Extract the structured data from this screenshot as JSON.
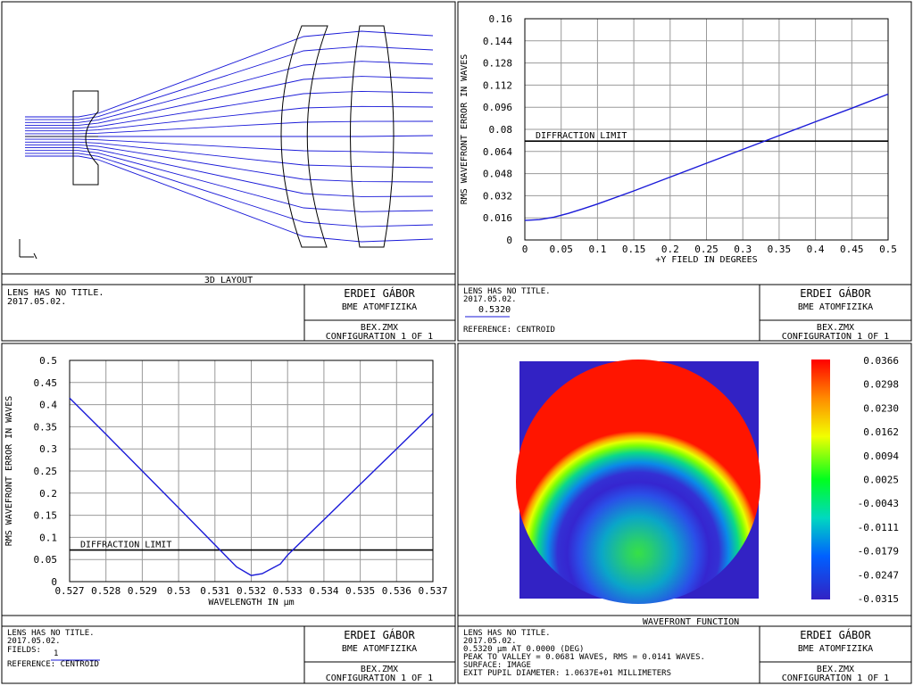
{
  "colors": {
    "frame": "#000000",
    "grid": "#9a9a9a",
    "ray": "#1a1ad8",
    "curve": "#1a1ad8",
    "lens": "#000000",
    "map_bg": "#3222c4"
  },
  "panels": [
    {
      "id": "layout",
      "title": "3D LAYOUT",
      "info_lines": [
        "LENS HAS NO TITLE.",
        "2017.05.02."
      ],
      "author": "ERDEI GÁBOR",
      "org": "BME ATOMFIZIKA",
      "file": "BEX.ZMX",
      "config": "CONFIGURATION 1 OF 1"
    },
    {
      "id": "rms_field",
      "title": "",
      "info_lines": [
        "LENS HAS NO TITLE.",
        "2017.05.02."
      ],
      "legend_value": "0.5320",
      "reference": "REFERENCE: CENTROID",
      "author": "ERDEI GÁBOR",
      "org": "BME ATOMFIZIKA",
      "file": "BEX.ZMX",
      "config": "CONFIGURATION 1 OF 1"
    },
    {
      "id": "rms_wavelength",
      "title": "",
      "info_lines": [
        "LENS HAS NO TITLE.",
        "2017.05.02."
      ],
      "fields_label": "FIELDS:",
      "fields_value": "1",
      "reference": "REFERENCE: CENTROID",
      "author": "ERDEI GÁBOR",
      "org": "BME ATOMFIZIKA",
      "file": "BEX.ZMX",
      "config": "CONFIGURATION 1 OF 1"
    },
    {
      "id": "wavefront",
      "title": "WAVEFRONT FUNCTION",
      "info_lines": [
        "LENS HAS NO TITLE.",
        "2017.05.02.",
        "0.5320 µm AT 0.0000 (DEG)",
        "PEAK TO VALLEY = 0.0681 WAVES, RMS = 0.0141 WAVES.",
        "SURFACE: IMAGE",
        "EXIT PUPIL DIAMETER: 1.0637E+01 MILLIMETERS"
      ],
      "author": "ERDEI GÁBOR",
      "org": "BME ATOMFIZIKA",
      "file": "BEX.ZMX",
      "config": "CONFIGURATION 1 OF 1"
    }
  ],
  "chart_data": [
    {
      "type": "line",
      "title": "",
      "xlabel": "+Y FIELD IN DEGREES",
      "ylabel": "RMS WAVEFRONT ERROR IN WAVES",
      "xlim": [
        0,
        0.5
      ],
      "ylim": [
        0,
        0.16
      ],
      "grid": true,
      "xticks": [
        "0",
        "0.05",
        "0.1",
        "0.15",
        "0.2",
        "0.25",
        "0.3",
        "0.35",
        "0.4",
        "0.45",
        "0.5"
      ],
      "yticks": [
        "0",
        "0.016",
        "0.032",
        "0.048",
        "0.064",
        "0.08",
        "0.096",
        "0.112",
        "0.128",
        "0.144",
        "0.16"
      ],
      "threshold": {
        "label": "DIFFRACTION LIMIT",
        "value": 0.0715
      },
      "series": [
        {
          "name": "0.5320",
          "x": [
            0,
            0.02,
            0.04,
            0.06,
            0.08,
            0.1,
            0.15,
            0.2,
            0.25,
            0.3,
            0.35,
            0.4,
            0.45,
            0.5
          ],
          "y": [
            0.0141,
            0.0147,
            0.0165,
            0.0192,
            0.0225,
            0.026,
            0.0355,
            0.0455,
            0.0555,
            0.0655,
            0.0755,
            0.0855,
            0.0953,
            0.1055
          ]
        }
      ]
    },
    {
      "type": "line",
      "title": "",
      "xlabel": "WAVELENGTH IN µm",
      "ylabel": "RMS WAVEFRONT ERROR IN WAVES",
      "xlim": [
        0.527,
        0.537
      ],
      "ylim": [
        0,
        0.5
      ],
      "grid": true,
      "xticks": [
        "0.527",
        "0.528",
        "0.529",
        "0.53",
        "0.531",
        "0.532",
        "0.533",
        "0.534",
        "0.535",
        "0.536",
        "0.537"
      ],
      "yticks": [
        "0",
        "0.05",
        "0.1",
        "0.15",
        "0.2",
        "0.25",
        "0.3",
        "0.35",
        "0.4",
        "0.45",
        "0.5"
      ],
      "threshold": {
        "label": "DIFFRACTION LIMIT",
        "value": 0.0714
      },
      "series": [
        {
          "name": "",
          "x": [
            0.527,
            0.528,
            0.529,
            0.53,
            0.531,
            0.5316,
            0.532,
            0.5323,
            0.5328,
            0.533,
            0.534,
            0.535,
            0.536,
            0.537
          ],
          "y": [
            0.415,
            0.333,
            0.25,
            0.167,
            0.083,
            0.033,
            0.014,
            0.018,
            0.04,
            0.06,
            0.14,
            0.22,
            0.3,
            0.38
          ]
        }
      ]
    },
    {
      "type": "heatmap",
      "title": "WAVEFRONT FUNCTION",
      "colorbar_ticks": [
        "0.0366",
        "0.0298",
        "0.0230",
        "0.0162",
        "0.0094",
        "0.0025",
        "-0.0043",
        "-0.0111",
        "-0.0179",
        "-0.0247",
        "-0.0315"
      ],
      "range": [
        -0.0315,
        0.0366
      ],
      "description_values": {
        "peak_to_valley": 0.0681,
        "rms": 0.0141
      }
    }
  ]
}
